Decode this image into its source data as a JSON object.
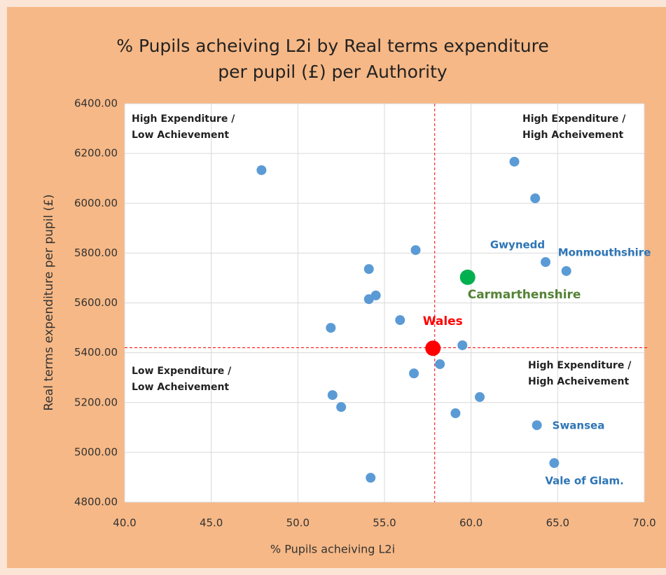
{
  "chart_data": {
    "type": "scatter",
    "title": [
      "% Pupils acheiving L2i by Real terms expenditure",
      "per pupil (£) per Authority"
    ],
    "x_label": "% Pupils acheiving L2i",
    "y_label": "Real terms expenditure per pupil (£)",
    "xlim": [
      40,
      70
    ],
    "ylim": [
      4800,
      6400
    ],
    "xticks": [
      {
        "value": 40,
        "label": "40.0"
      },
      {
        "value": 45,
        "label": "45.0"
      },
      {
        "value": 50,
        "label": "50.0"
      },
      {
        "value": 55,
        "label": "55.0"
      },
      {
        "value": 60,
        "label": "60.0"
      },
      {
        "value": 65,
        "label": "65.0"
      },
      {
        "value": 70,
        "label": "70.0"
      }
    ],
    "yticks": [
      {
        "value": 4800,
        "label": "4800.00"
      },
      {
        "value": 5000,
        "label": "5000.00"
      },
      {
        "value": 5200,
        "label": "5200.00"
      },
      {
        "value": 5400,
        "label": "5400.00"
      },
      {
        "value": 5600,
        "label": "5600.00"
      },
      {
        "value": 5800,
        "label": "5800.00"
      },
      {
        "value": 6000,
        "label": "6000.00"
      },
      {
        "value": 6200,
        "label": "6200.00"
      },
      {
        "value": 6400,
        "label": "6400.00"
      }
    ],
    "grid": true,
    "reference_lines": {
      "x": 57.9,
      "y": 5420,
      "color": "#ff0000"
    },
    "series": [
      {
        "color": "#5b9bd5",
        "label_color": "#2e75b6",
        "x": [
          47.9,
          62.5,
          63.7,
          56.8,
          54.1,
          64.3,
          65.5,
          54.5,
          54.1,
          51.9,
          55.9,
          59.5,
          58.2,
          56.7,
          52.0,
          52.5,
          60.5,
          59.1,
          63.8,
          64.8,
          54.2
        ],
        "values": [
          6133,
          6167,
          6020,
          5812,
          5736,
          5764,
          5728,
          5630,
          5615,
          5500,
          5531,
          5430,
          5354,
          5317,
          5230,
          5182,
          5222,
          5157,
          5109,
          4957,
          4898
        ],
        "labels": [
          null,
          null,
          null,
          null,
          null,
          "Gwynedd",
          "Monmouthshire",
          null,
          null,
          null,
          null,
          null,
          null,
          null,
          null,
          null,
          null,
          null,
          "Swansea",
          "Vale of Glam.",
          null
        ]
      },
      {
        "color": "#00b050",
        "label_color": "#548235",
        "x": [
          59.8
        ],
        "values": [
          5703
        ],
        "labels": [
          "Carmarthenshire"
        ]
      },
      {
        "color": "#ff0000",
        "label_color": "#ff0000",
        "x": [
          57.8
        ],
        "values": [
          5418
        ],
        "labels": [
          "Wales"
        ]
      }
    ],
    "annotations": [
      [
        "High Expenditure /",
        "Low Achievement"
      ],
      [
        "High Expenditure /",
        "High Acheivement"
      ],
      [
        "Low Expenditure /",
        "Low Acheivement"
      ],
      [
        "High Expenditure /",
        "High Acheivement"
      ]
    ]
  }
}
